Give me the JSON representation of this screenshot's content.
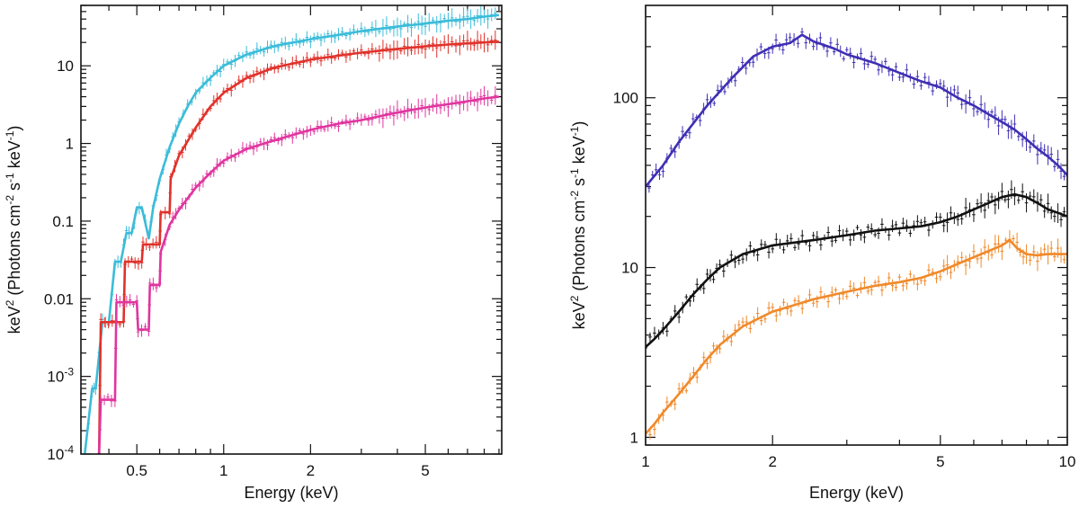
{
  "chart_data": [
    {
      "type": "line",
      "scale": "log-log",
      "xlabel": "Energy (keV)",
      "ylabel": {
        "main": "keV",
        "sup1": "2",
        "part2": " (Photons cm",
        "sup2": "-2",
        "part3": " s",
        "sup3": "-1",
        "part4": " keV",
        "sup4": "-1",
        "part5": ")"
      },
      "xlim": [
        0.32,
        9.2
      ],
      "ylim": [
        0.0001,
        60
      ],
      "x_ticks": [
        {
          "value": 0.5,
          "label": "0.5"
        },
        {
          "value": 1,
          "label": "1"
        },
        {
          "value": 2,
          "label": "2"
        },
        {
          "value": 5,
          "label": "5"
        }
      ],
      "y_ticks": [
        {
          "value": 0.0001,
          "label": "10",
          "sup": "-4"
        },
        {
          "value": 0.001,
          "label": "10",
          "sup": "-3"
        },
        {
          "value": 0.01,
          "label": "0.01",
          "sup": ""
        },
        {
          "value": 0.1,
          "label": "0.1",
          "sup": ""
        },
        {
          "value": 1,
          "label": "1",
          "sup": ""
        },
        {
          "value": 10,
          "label": "10",
          "sup": ""
        }
      ],
      "series": [
        {
          "name": "cyan",
          "color": "#3bbcd9",
          "x": [
            0.33,
            0.35,
            0.36,
            0.38,
            0.4,
            0.42,
            0.44,
            0.46,
            0.48,
            0.5,
            0.52,
            0.55,
            0.57,
            0.6,
            0.65,
            0.7,
            0.75,
            0.8,
            0.9,
            1.0,
            1.2,
            1.5,
            2.0,
            2.5,
            3.0,
            4.0,
            5.0,
            6.0,
            7.0,
            8.0,
            9.0
          ],
          "y": [
            0.0001,
            0.0007,
            0.0007,
            0.005,
            0.005,
            0.03,
            0.03,
            0.07,
            0.07,
            0.15,
            0.15,
            0.06,
            0.15,
            0.35,
            0.9,
            1.8,
            3.0,
            4.5,
            7.0,
            10.0,
            14.0,
            18.0,
            22.0,
            25.0,
            28.0,
            32.0,
            35.0,
            38.0,
            40.0,
            43.0,
            45.0
          ]
        },
        {
          "name": "red",
          "color": "#e0322b",
          "x": [
            0.37,
            0.375,
            0.45,
            0.455,
            0.52,
            0.525,
            0.6,
            0.605,
            0.65,
            0.655,
            0.7,
            0.8,
            0.9,
            1.0,
            1.2,
            1.5,
            2.0,
            2.5,
            3.0,
            4.0,
            5.0,
            6.0,
            7.0,
            8.0,
            9.0
          ],
          "y": [
            0.0001,
            0.005,
            0.005,
            0.03,
            0.03,
            0.05,
            0.05,
            0.13,
            0.13,
            0.35,
            0.7,
            1.6,
            3.0,
            4.5,
            7.0,
            9.5,
            12.0,
            13.5,
            14.8,
            16.5,
            17.8,
            18.8,
            19.5,
            20.0,
            20.5
          ]
        },
        {
          "name": "magenta",
          "color": "#e0359f",
          "x": [
            0.37,
            0.375,
            0.42,
            0.425,
            0.5,
            0.505,
            0.55,
            0.555,
            0.6,
            0.605,
            0.65,
            0.7,
            0.8,
            0.9,
            1.0,
            1.2,
            1.5,
            2.0,
            2.5,
            3.0,
            4.0,
            5.0,
            6.0,
            7.0,
            8.0,
            9.0
          ],
          "y": [
            0.0001,
            0.0005,
            0.0005,
            0.009,
            0.009,
            0.004,
            0.004,
            0.015,
            0.015,
            0.04,
            0.09,
            0.14,
            0.27,
            0.42,
            0.6,
            0.85,
            1.1,
            1.5,
            1.8,
            2.0,
            2.5,
            2.9,
            3.2,
            3.5,
            3.8,
            4.0
          ]
        }
      ]
    },
    {
      "type": "line",
      "scale": "log-log",
      "xlabel": "Energy (keV)",
      "ylabel": {
        "main": "keV",
        "sup1": "2",
        "part2": " (Photons cm",
        "sup2": "-2",
        "part3": " s",
        "sup3": "-1",
        "part4": " keV",
        "sup4": "-1",
        "part5": ")"
      },
      "xlim": [
        1,
        10
      ],
      "ylim": [
        0.9,
        350
      ],
      "x_ticks": [
        {
          "value": 1,
          "label": "1"
        },
        {
          "value": 2,
          "label": "2"
        },
        {
          "value": 5,
          "label": "5"
        },
        {
          "value": 10,
          "label": "10"
        }
      ],
      "y_ticks": [
        {
          "value": 1,
          "label": "1",
          "sup": ""
        },
        {
          "value": 10,
          "label": "10",
          "sup": ""
        },
        {
          "value": 100,
          "label": "100",
          "sup": ""
        }
      ],
      "series": [
        {
          "name": "blue",
          "color": "#3f2fb3",
          "x": [
            1.0,
            1.1,
            1.2,
            1.4,
            1.6,
            1.8,
            2.0,
            2.2,
            2.35,
            2.5,
            2.8,
            3.0,
            3.5,
            4.0,
            4.5,
            5.0,
            5.5,
            6.0,
            6.5,
            7.0,
            7.5,
            8.0,
            8.5,
            9.0,
            9.5,
            10.0
          ],
          "y": [
            30,
            40,
            55,
            90,
            130,
            175,
            200,
            210,
            235,
            215,
            195,
            180,
            160,
            140,
            125,
            115,
            100,
            90,
            80,
            72,
            65,
            57,
            50,
            45,
            40,
            35
          ]
        },
        {
          "name": "black",
          "color": "#111111",
          "x": [
            1.0,
            1.05,
            1.1,
            1.2,
            1.3,
            1.4,
            1.5,
            1.7,
            2.0,
            2.5,
            3.0,
            3.5,
            4.0,
            4.5,
            5.0,
            5.5,
            6.0,
            6.5,
            7.0,
            7.5,
            8.0,
            8.5,
            9.0,
            9.5,
            10.0
          ],
          "y": [
            3.4,
            3.8,
            4.3,
            5.5,
            7.0,
            8.5,
            10.0,
            12.0,
            13.5,
            14.5,
            15.5,
            16.5,
            17.0,
            17.5,
            18.5,
            20.0,
            22.0,
            24.0,
            26.0,
            27.0,
            26.0,
            24.0,
            22.0,
            21.0,
            20.0
          ]
        },
        {
          "name": "orange",
          "color": "#f0892a",
          "x": [
            1.0,
            1.05,
            1.1,
            1.2,
            1.3,
            1.4,
            1.5,
            1.7,
            2.0,
            2.5,
            3.0,
            3.5,
            4.0,
            4.5,
            5.0,
            5.5,
            6.0,
            6.5,
            7.0,
            7.3,
            7.6,
            8.0,
            8.5,
            9.0,
            9.5,
            10.0
          ],
          "y": [
            1.05,
            1.2,
            1.4,
            1.8,
            2.3,
            2.9,
            3.5,
            4.5,
            5.5,
            6.5,
            7.2,
            7.8,
            8.2,
            8.7,
            9.5,
            10.5,
            11.5,
            12.5,
            13.5,
            14.5,
            13.0,
            12.0,
            11.8,
            12.0,
            12.0,
            12.0
          ]
        }
      ]
    }
  ]
}
